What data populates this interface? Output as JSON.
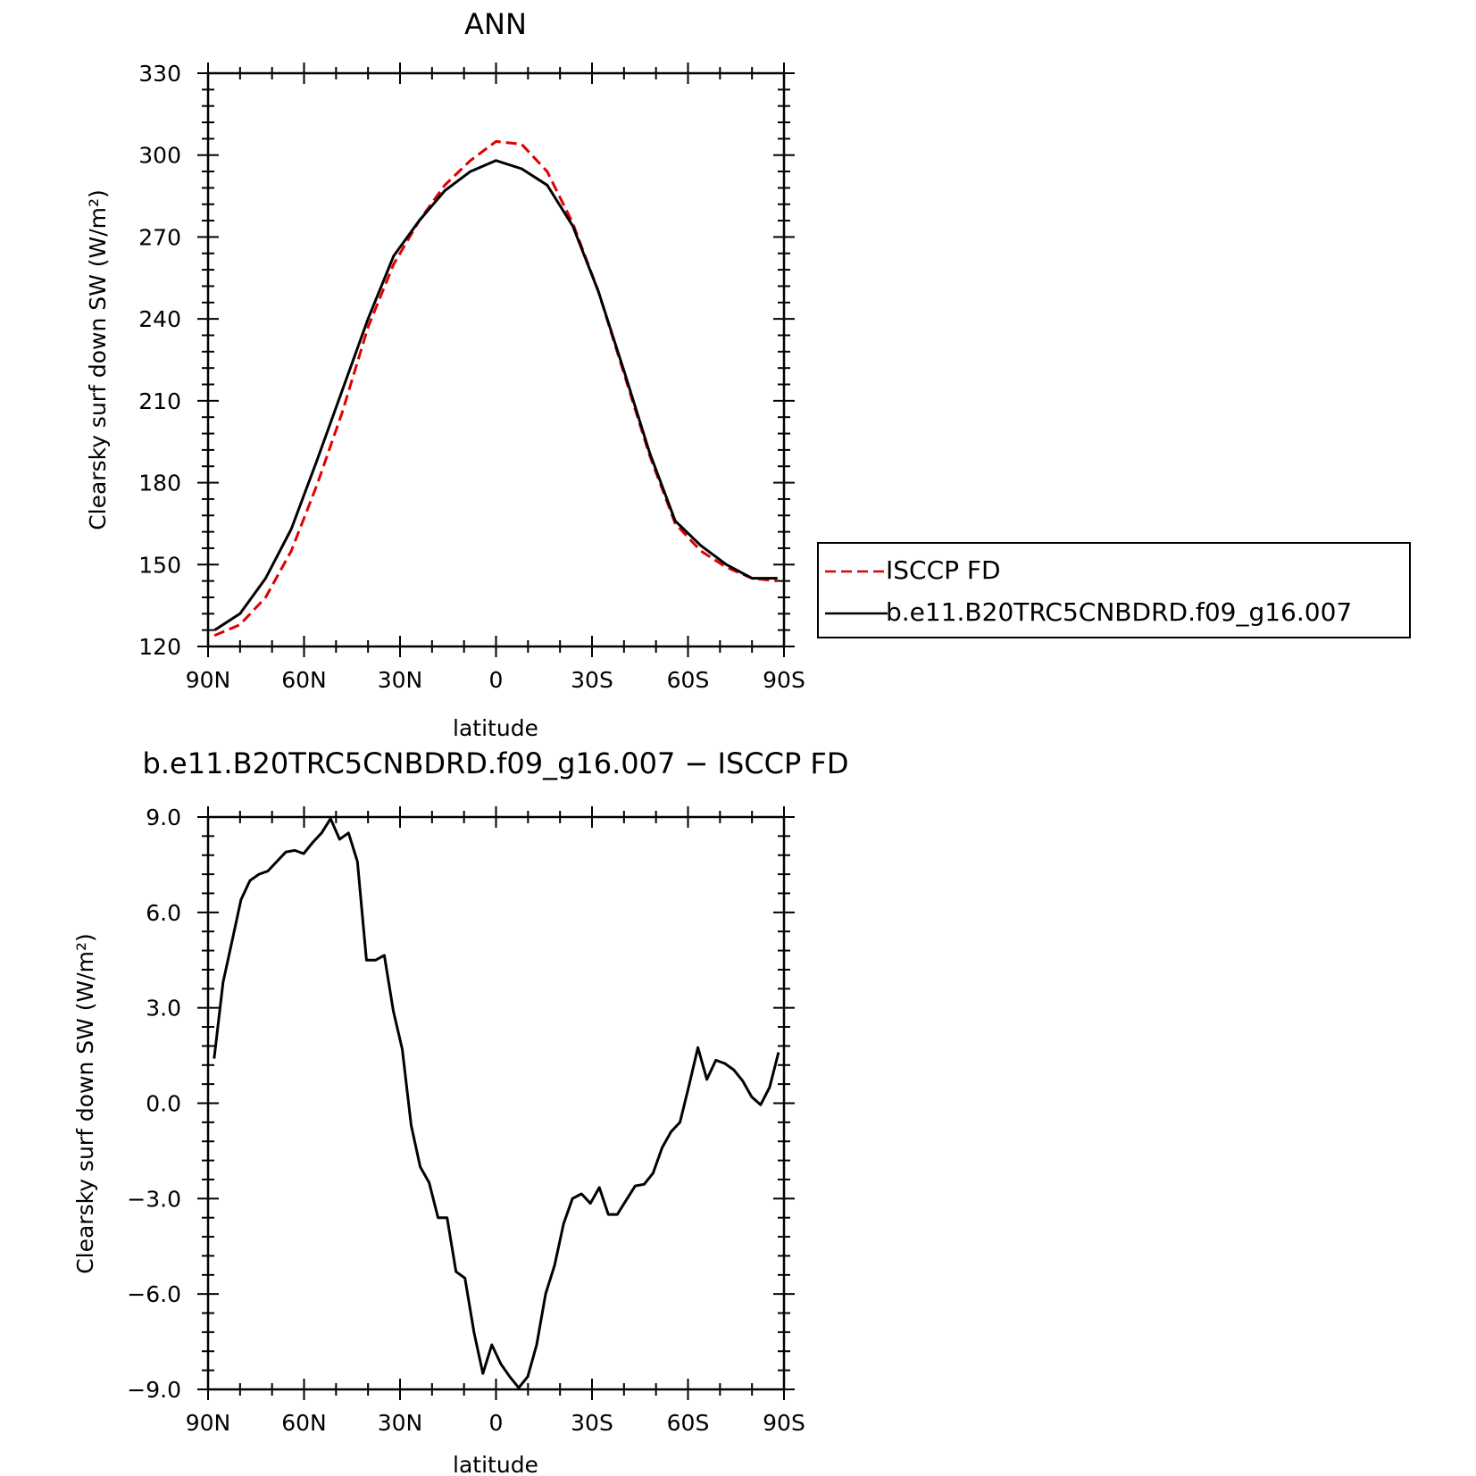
{
  "chart_data": [
    {
      "type": "line",
      "title": "ANN",
      "xlabel": "latitude",
      "ylabel": "Clearsky surf down SW (W/m²)",
      "xlim": [
        90,
        -90
      ],
      "ylim": [
        120,
        330
      ],
      "xticks": [
        90,
        60,
        30,
        0,
        -30,
        -60,
        -90
      ],
      "xtick_labels": [
        "90N",
        "60N",
        "30N",
        "0",
        "30S",
        "60S",
        "90S"
      ],
      "yticks": [
        120,
        150,
        180,
        210,
        240,
        270,
        300,
        330
      ],
      "ytick_labels": [
        "120",
        "150",
        "180",
        "210",
        "240",
        "270",
        "300",
        "330"
      ],
      "legend_position": "right",
      "x": [
        88,
        80,
        72,
        64,
        56,
        48,
        40,
        32,
        24,
        16,
        8,
        0,
        -8,
        -16,
        -24,
        -32,
        -40,
        -48,
        -56,
        -64,
        -72,
        -80,
        -88
      ],
      "series": [
        {
          "name": "ISCCP FD",
          "color": "#e00000",
          "dash": "dashed",
          "values": [
            124,
            128,
            138,
            155,
            179,
            206,
            237,
            260,
            276,
            289,
            298,
            305,
            304,
            294,
            275,
            250,
            220,
            190,
            165,
            155,
            149,
            145,
            144
          ]
        },
        {
          "name": "b.e11.B20TRC5CNBDRD.f09_g16.007",
          "color": "#000000",
          "dash": "solid",
          "values": [
            126,
            132,
            145,
            163,
            188,
            214,
            240,
            263,
            276,
            287,
            294,
            298,
            295,
            289,
            274,
            250,
            221,
            191,
            166,
            157,
            150,
            145,
            145
          ]
        }
      ]
    },
    {
      "type": "line",
      "title": "b.e11.B20TRC5CNBDRD.f09_g16.007 − ISCCP FD",
      "xlabel": "latitude",
      "ylabel": "Clearsky surf down SW (W/m²)",
      "xlim": [
        90,
        -90
      ],
      "ylim": [
        -9,
        9
      ],
      "xticks": [
        90,
        60,
        30,
        0,
        -30,
        -60,
        -90
      ],
      "xtick_labels": [
        "90N",
        "60N",
        "30N",
        "0",
        "30S",
        "60S",
        "90S"
      ],
      "yticks": [
        9,
        6,
        3,
        0,
        -3,
        -6,
        -9
      ],
      "ytick_labels": [
        "9.0",
        "6.0",
        "3.0",
        "0.0",
        "−3.0",
        "−6.0",
        "−9.0"
      ],
      "series": [
        {
          "color": "#000000",
          "x": [
            88.1,
            85.3,
            82.5,
            79.7,
            76.9,
            74.1,
            71.3,
            68.5,
            65.7,
            62.9,
            60.1,
            57.3,
            54.5,
            51.7,
            48.9,
            46.1,
            43.3,
            40.5,
            37.7,
            34.9,
            32.1,
            29.3,
            26.5,
            23.7,
            20.9,
            18.1,
            15.3,
            12.5,
            9.7,
            6.9,
            4.1,
            1.3,
            -1.5,
            -4.3,
            -7.1,
            -9.9,
            -12.7,
            -15.5,
            -18.3,
            -21.1,
            -23.9,
            -26.7,
            -29.5,
            -32.3,
            -35.1,
            -37.9,
            -40.7,
            -43.5,
            -46.3,
            -49.1,
            -51.9,
            -54.7,
            -57.5,
            -60.3,
            -63.1,
            -65.9,
            -68.7,
            -71.5,
            -74.3,
            -77.1,
            -79.9,
            -82.7,
            -85.5,
            -88.3
          ],
          "values": [
            1.4,
            3.8,
            5.1,
            6.4,
            7.0,
            7.2,
            7.3,
            7.6,
            7.9,
            7.95,
            7.85,
            8.2,
            8.5,
            8.95,
            8.3,
            8.5,
            7.6,
            4.5,
            4.5,
            4.65,
            2.9,
            1.7,
            -0.7,
            -2.0,
            -2.5,
            -3.6,
            -3.6,
            -5.3,
            -5.5,
            -7.2,
            -8.5,
            -7.6,
            -8.2,
            -8.6,
            -8.95,
            -8.6,
            -7.6,
            -6.0,
            -5.1,
            -3.8,
            -3.0,
            -2.85,
            -3.15,
            -2.65,
            -3.5,
            -3.5,
            -3.05,
            -2.6,
            -2.55,
            -2.2,
            -1.4,
            -0.9,
            -0.6,
            0.55,
            1.75,
            0.75,
            1.35,
            1.25,
            1.05,
            0.7,
            0.2,
            -0.05,
            0.5,
            1.6
          ]
        }
      ]
    }
  ]
}
